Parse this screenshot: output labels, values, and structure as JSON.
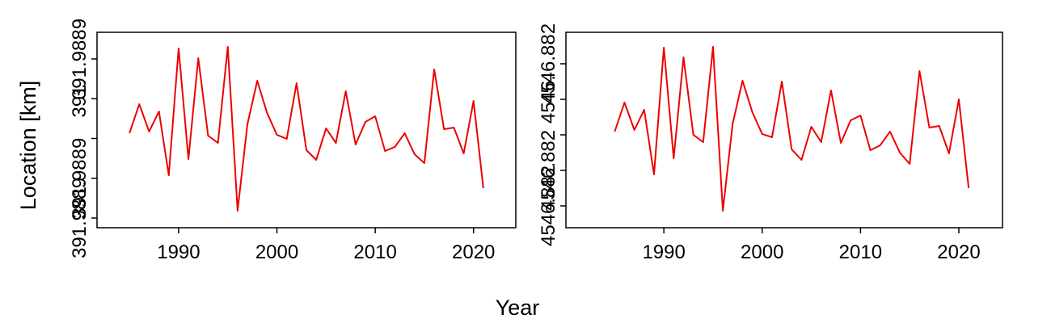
{
  "xlabel": "Year",
  "ylabel": "Location [km]",
  "chart_data": [
    {
      "type": "line",
      "x": [
        1985,
        1986,
        1987,
        1988,
        1989,
        1990,
        1991,
        1992,
        1993,
        1994,
        1995,
        1996,
        1997,
        1998,
        1999,
        2000,
        2001,
        2002,
        2003,
        2004,
        2005,
        2006,
        2007,
        2008,
        2009,
        2010,
        2011,
        2012,
        2013,
        2014,
        2015,
        2016,
        2017,
        2018,
        2019,
        2020,
        2021
      ],
      "series": [
        {
          "color": "#ee0000",
          "values": [
            391.98888132,
            391.98888863,
            391.98888173,
            391.9888868,
            391.98887076,
            391.98890264,
            391.98887482,
            391.9889002,
            391.98888071,
            391.98887888,
            391.98890305,
            391.98886183,
            391.98888355,
            391.98889452,
            391.9888864,
            391.98888091,
            391.9888799,
            391.98889391,
            391.98887706,
            391.98887462,
            391.98888254,
            391.98887888,
            391.98889188,
            391.98887848,
            391.98888416,
            391.98888558,
            391.98887685,
            391.98887787,
            391.98888132,
            391.98887604,
            391.98887381,
            391.98889736,
            391.98888234,
            391.98888274,
            391.98887624,
            391.98888944,
            391.98886751
          ]
        }
      ],
      "xlim": [
        1981.7,
        2024.3
      ],
      "xticks": [
        1990,
        2000,
        2010,
        2020
      ],
      "ylim": [
        391.98885756,
        391.9889067
      ],
      "yticks": [
        {
          "value": 391.98886,
          "label": "391.9889"
        },
        {
          "value": 391.98887,
          "label": "391.9889"
        },
        {
          "value": 391.98888,
          "label": null
        },
        {
          "value": 391.98889,
          "label": "391."
        },
        {
          "value": 391.9889,
          "label": "391.9889"
        }
      ]
    },
    {
      "type": "line",
      "x": [
        1985,
        1986,
        1987,
        1988,
        1989,
        1990,
        1991,
        1992,
        1993,
        1994,
        1995,
        1996,
        1997,
        1998,
        1999,
        2000,
        2001,
        2002,
        2003,
        2004,
        2005,
        2006,
        2007,
        2008,
        2009,
        2010,
        2011,
        2012,
        2013,
        2014,
        2015,
        2016,
        2017,
        2018,
        2019,
        2020,
        2021
      ],
      "series": [
        {
          "color": "#ee0000",
          "values": [
            4546.88198091,
            4546.88198909,
            4546.88198136,
            4546.88198705,
            4546.88196886,
            4546.88200455,
            4546.88197341,
            4546.88200182,
            4546.88198,
            4546.88197795,
            4546.88200477,
            4546.88195864,
            4546.88198318,
            4546.88199523,
            4546.88198636,
            4546.88198023,
            4546.88197932,
            4546.881995,
            4546.88197591,
            4546.88197295,
            4546.88198227,
            4546.88197795,
            4546.8819925,
            4546.88197773,
            4546.88198409,
            4546.88198545,
            4546.88197568,
            4546.88197705,
            4546.88198091,
            4546.881975,
            4546.88197182,
            4546.88199795,
            4546.88198205,
            4546.8819825,
            4546.88197477,
            4546.88199,
            4546.881965
          ]
        }
      ],
      "xlim": [
        1980.04,
        2024.44
      ],
      "xticks": [
        1990,
        2000,
        2010,
        2020
      ],
      "ylim": [
        4546.88195386,
        4546.88200886
      ],
      "yticks": [
        {
          "value": 4546.88196,
          "label": "4546.882"
        },
        {
          "value": 4546.88197,
          "label": "4546.882"
        },
        {
          "value": 4546.88198,
          "label": null
        },
        {
          "value": 4546.88199,
          "label": "4546."
        },
        {
          "value": 4546.882,
          "label": "4546.882"
        }
      ]
    }
  ]
}
